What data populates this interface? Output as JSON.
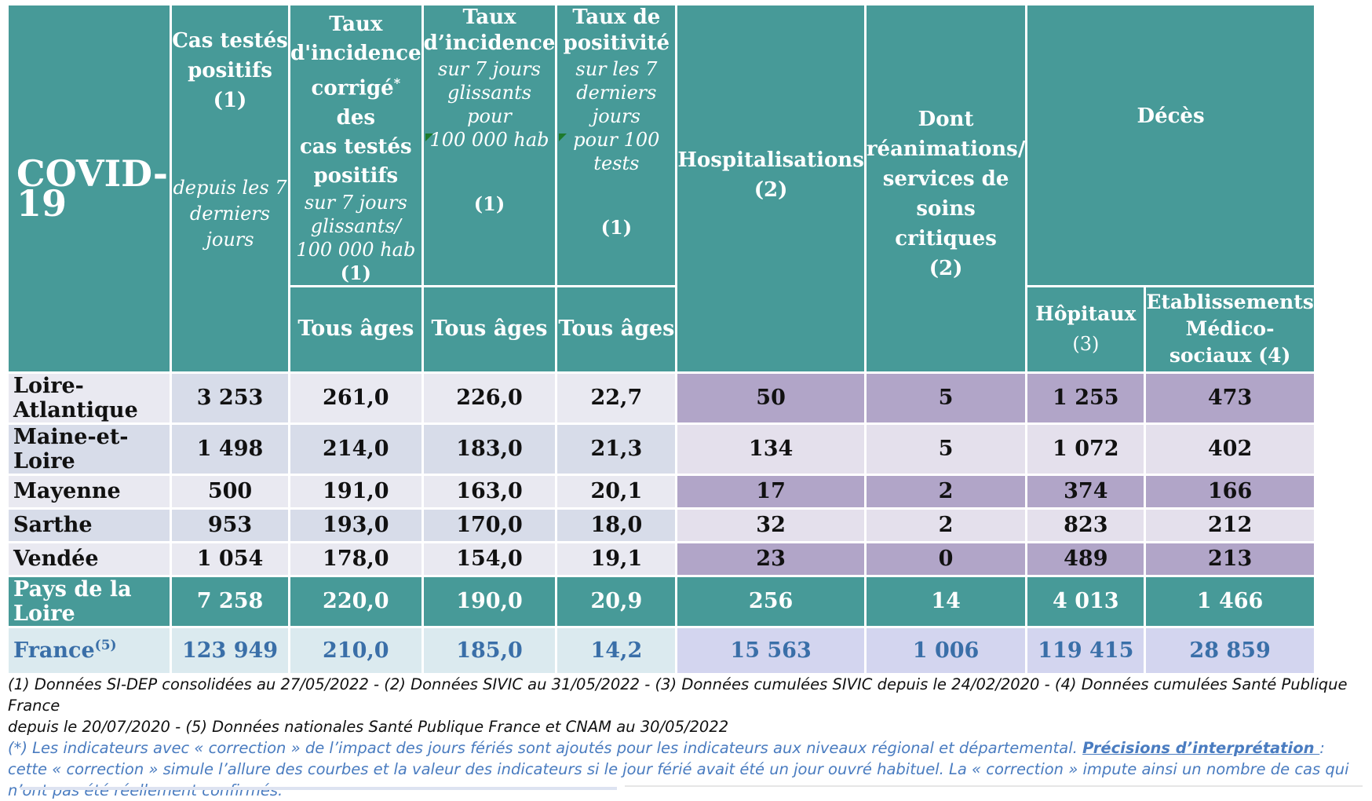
{
  "header": {
    "title": "COVID-19",
    "col_cas": {
      "line1": "Cas testés",
      "line2": "positifs",
      "line3": "(1)",
      "italic1": "depuis les 7",
      "italic2": "derniers jours"
    },
    "col_taux_corrige": {
      "line1": "Taux",
      "line2": "d'incidence",
      "line3": "corrigé",
      "sup": "*",
      "line3b": " des",
      "line4": "cas testés",
      "line5": "positifs",
      "italic1": "sur 7 jours",
      "italic2": "glissants/",
      "italic3": "100 000 hab",
      "note": "(1)"
    },
    "col_taux_incidence": {
      "line1": "Taux",
      "line2": "d’incidence",
      "italic1": "sur 7 jours",
      "italic2": "glissants pour",
      "italic3": "100 000 hab",
      "note": "(1)"
    },
    "col_taux_positivite": {
      "line1": "Taux de",
      "line2": "positivité",
      "italic1": "sur les 7",
      "italic2": "derniers jours",
      "italic3": "pour 100 tests",
      "note": "(1)"
    },
    "col_hosp": {
      "line1": "Hospitalisations",
      "note": "(2)"
    },
    "col_rea": {
      "line1": "Dont",
      "line2": "réanimations/",
      "line3": "services de",
      "line4": "soins critiques",
      "note": "(2)"
    },
    "col_deces": {
      "line1": "Décès"
    },
    "sub_tous_ages": "Tous âges",
    "sub_hopitaux": "Hôpitaux",
    "sub_hopitaux_note": "(3)",
    "sub_ems1": "Etablissements",
    "sub_ems2": "Médico-",
    "sub_ems3": "sociaux (4)"
  },
  "rows": [
    {
      "name": "Loire-Atlantique",
      "cas": "3 253",
      "corrige": "261,0",
      "incidence": "226,0",
      "positivite": "22,7",
      "hosp": "50",
      "rea": "5",
      "hopitaux": "1 255",
      "ems": "473"
    },
    {
      "name": "Maine-et-Loire",
      "cas": "1 498",
      "corrige": "214,0",
      "incidence": "183,0",
      "positivite": "21,3",
      "hosp": "134",
      "rea": "5",
      "hopitaux": "1 072",
      "ems": "402"
    },
    {
      "name": "Mayenne",
      "cas": "500",
      "corrige": "191,0",
      "incidence": "163,0",
      "positivite": "20,1",
      "hosp": "17",
      "rea": "2",
      "hopitaux": "374",
      "ems": "166"
    },
    {
      "name": "Sarthe",
      "cas": "953",
      "corrige": "193,0",
      "incidence": "170,0",
      "positivite": "18,0",
      "hosp": "32",
      "rea": "2",
      "hopitaux": "823",
      "ems": "212"
    },
    {
      "name": "Vendée",
      "cas": "1 054",
      "corrige": "178,0",
      "incidence": "154,0",
      "positivite": "19,1",
      "hosp": "23",
      "rea": "0",
      "hopitaux": "489",
      "ems": "213"
    }
  ],
  "region": {
    "name": "Pays de la Loire",
    "cas": "7 258",
    "corrige": "220,0",
    "incidence": "190,0",
    "positivite": "20,9",
    "hosp": "256",
    "rea": "14",
    "hopitaux": "4 013",
    "ems": "1 466"
  },
  "france": {
    "name": "France",
    "sup": "(5)",
    "cas": "123 949",
    "corrige": "210,0",
    "incidence": "185,0",
    "positivite": "14,2",
    "hosp": "15 563",
    "rea": "1 006",
    "hopitaux": "119 415",
    "ems": "28 859"
  },
  "notes": {
    "sources_line1": "(1) Données SI-DEP consolidées au 27/05/2022 -  (2) Données SIVIC au 31/05/2022 - (3) Données cumulées SIVIC depuis le 24/02/2020 - (4) Données cumulées Santé Publique France",
    "sources_line2": "depuis le 20/07/2020 - (5) Données nationales Santé Publique France et CNAM au 30/05/2022",
    "correction_a": "(*) Les indicateurs avec « correction » de l’impact des jours fériés sont ajoutés pour les indicateurs aux niveaux régional et départemental. ",
    "correction_link": "Précisions d’interprétation ",
    "correction_b": ": cette « correction » simule l’allure des courbes et la valeur des indicateurs si le jour férié avait été un jour ouvré habituel. La « correction » impute ainsi un nombre de cas qui n’ont pas été réellement confirmés."
  },
  "colors": {
    "header_teal": "#479a98",
    "purple": "#b1a5c8",
    "france_text": "#3a6fa8",
    "note_blue": "#4a7cc0"
  }
}
